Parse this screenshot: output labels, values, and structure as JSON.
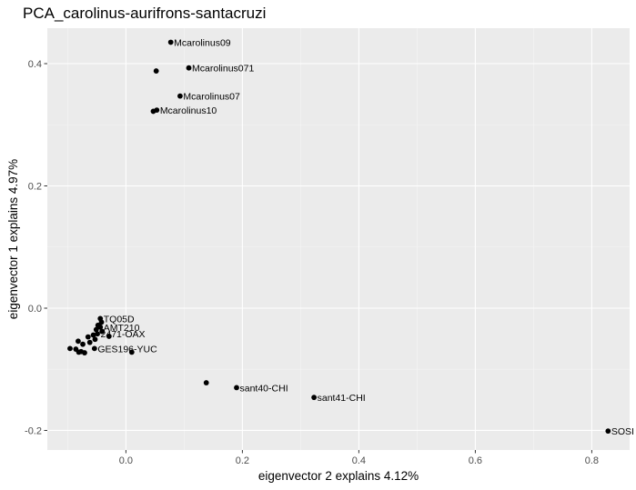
{
  "chart_data": {
    "type": "scatter",
    "title": "PCA_carolinus-aurifrons-santacruzi",
    "xlabel": "eigenvector 2 explains 4.12%",
    "ylabel": "eigenvector 1 explains 4.97%",
    "xlim": [
      -0.135,
      0.865
    ],
    "ylim": [
      -0.232,
      0.458
    ],
    "x_ticks": [
      0.0,
      0.2,
      0.4,
      0.6,
      0.8
    ],
    "x_tick_labels": [
      "0.0",
      "0.2",
      "0.4",
      "0.6",
      "0.8"
    ],
    "y_ticks": [
      -0.2,
      0.0,
      0.2,
      0.4
    ],
    "y_tick_labels": [
      "-0.2",
      "0.0",
      "0.2",
      "0.4"
    ],
    "grid": true,
    "background": "#ebebeb",
    "point_color": "#000000",
    "points": [
      {
        "x": 0.077,
        "y": 0.435,
        "label": "Mcarolinus09"
      },
      {
        "x": 0.108,
        "y": 0.393,
        "label": "Mcarolinus071"
      },
      {
        "x": 0.052,
        "y": 0.388,
        "label": ""
      },
      {
        "x": 0.093,
        "y": 0.347,
        "label": "Mcarolinus07"
      },
      {
        "x": 0.047,
        "y": 0.322,
        "label": ""
      },
      {
        "x": 0.053,
        "y": 0.324,
        "label": "Mcarolinus10"
      },
      {
        "x": -0.044,
        "y": -0.017,
        "label": "TQ05D"
      },
      {
        "x": -0.042,
        "y": -0.023,
        "label": ""
      },
      {
        "x": -0.048,
        "y": -0.028,
        "label": ""
      },
      {
        "x": -0.044,
        "y": -0.031,
        "label": "AMT210"
      },
      {
        "x": -0.051,
        "y": -0.035,
        "label": ""
      },
      {
        "x": -0.041,
        "y": -0.038,
        "label": ""
      },
      {
        "x": -0.049,
        "y": -0.042,
        "label": "2471-OAX"
      },
      {
        "x": -0.056,
        "y": -0.044,
        "label": ""
      },
      {
        "x": -0.029,
        "y": -0.046,
        "label": ""
      },
      {
        "x": -0.065,
        "y": -0.047,
        "label": ""
      },
      {
        "x": -0.053,
        "y": -0.051,
        "label": ""
      },
      {
        "x": -0.082,
        "y": -0.054,
        "label": ""
      },
      {
        "x": -0.062,
        "y": -0.056,
        "label": ""
      },
      {
        "x": -0.074,
        "y": -0.059,
        "label": ""
      },
      {
        "x": -0.096,
        "y": -0.066,
        "label": ""
      },
      {
        "x": -0.054,
        "y": -0.066,
        "label": "GES196-YUC"
      },
      {
        "x": -0.086,
        "y": -0.067,
        "label": ""
      },
      {
        "x": -0.077,
        "y": -0.071,
        "label": ""
      },
      {
        "x": -0.081,
        "y": -0.072,
        "label": ""
      },
      {
        "x": -0.071,
        "y": -0.073,
        "label": ""
      },
      {
        "x": 0.01,
        "y": -0.072,
        "label": ""
      },
      {
        "x": 0.138,
        "y": -0.122,
        "label": ""
      },
      {
        "x": 0.19,
        "y": -0.13,
        "label": "sant40-CHI"
      },
      {
        "x": 0.323,
        "y": -0.146,
        "label": "sant41-CHI"
      },
      {
        "x": 0.828,
        "y": -0.201,
        "label": "SOSI"
      }
    ]
  }
}
